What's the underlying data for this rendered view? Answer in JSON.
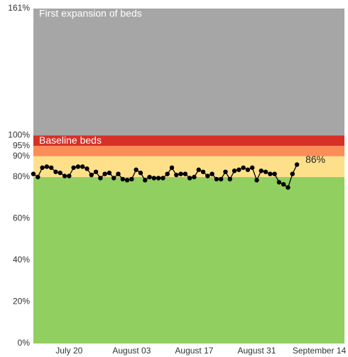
{
  "chart_data": {
    "type": "line",
    "categories": [
      null,
      null,
      null,
      null,
      null,
      null,
      null,
      null,
      "July 20",
      null,
      null,
      null,
      null,
      null,
      null,
      null,
      null,
      null,
      null,
      null,
      null,
      null,
      "August 03",
      null,
      null,
      null,
      null,
      null,
      null,
      null,
      null,
      null,
      null,
      null,
      null,
      null,
      "August 17",
      null,
      null,
      null,
      null,
      null,
      null,
      null,
      null,
      null,
      null,
      null,
      null,
      null,
      "August 31",
      null,
      null,
      null,
      null,
      null,
      null,
      null,
      null,
      null,
      null,
      null,
      null,
      null,
      "September 14",
      null,
      null,
      null,
      null,
      null
    ],
    "values": [
      81.5,
      80,
      84.5,
      85,
      84.5,
      82.5,
      82,
      80.5,
      80.5,
      84.5,
      85,
      85,
      84,
      81,
      82.5,
      79.5,
      81.5,
      82,
      79.5,
      81.5,
      79,
      78.5,
      79,
      83.5,
      82,
      78.5,
      80,
      79.5,
      79.5,
      79.5,
      81.5,
      84.5,
      81,
      81.5,
      81.5,
      79.5,
      80,
      83.5,
      82.5,
      80.5,
      81.5,
      79,
      79,
      82.5,
      79,
      83,
      83.5,
      84.5,
      83.5,
      84.5,
      78.5,
      83,
      82.5,
      81.5,
      81.5,
      77.5,
      76.5,
      75,
      81.5,
      86,
      null,
      null,
      null,
      null,
      null,
      null,
      null,
      null,
      null,
      null
    ],
    "value_labels": [
      null,
      null,
      null,
      null,
      null,
      null,
      null,
      null,
      null,
      null,
      null,
      null,
      null,
      null,
      null,
      null,
      null,
      null,
      null,
      null,
      null,
      null,
      null,
      null,
      null,
      null,
      null,
      null,
      null,
      null,
      null,
      null,
      null,
      null,
      null,
      null,
      null,
      null,
      null,
      null,
      null,
      null,
      null,
      null,
      null,
      null,
      null,
      null,
      null,
      null,
      null,
      null,
      null,
      null,
      null,
      null,
      null,
      null,
      null,
      "86%",
      null,
      null,
      null,
      null,
      null,
      null,
      null,
      null,
      null,
      null
    ],
    "color": "#000000",
    "ylim": [
      0,
      161
    ],
    "yticks": [
      {
        "value": 0,
        "label": "0%"
      },
      {
        "value": 20,
        "label": "20%"
      },
      {
        "value": 40,
        "label": "40%"
      },
      {
        "value": 60,
        "label": "60%"
      },
      {
        "value": 80,
        "label": "80%"
      },
      {
        "value": 90,
        "label": "90%"
      },
      {
        "value": 95,
        "label": "95%"
      },
      {
        "value": 100,
        "label": "100%"
      },
      {
        "value": 161,
        "label": "161%"
      }
    ],
    "bands": [
      {
        "from": 0,
        "to": 80,
        "color": "#91cf60"
      },
      {
        "from": 80,
        "to": 90,
        "color": "#fee08b"
      },
      {
        "from": 90,
        "to": 95,
        "color": "#fc8d59"
      },
      {
        "from": 95,
        "to": 100,
        "color": "#d73027"
      },
      {
        "from": 100,
        "to": 161,
        "color": "#a6a6a6"
      }
    ],
    "band_labels": [
      {
        "text": "Baseline beds",
        "y": 100
      },
      {
        "text": "First expansion of beds",
        "y": 161
      }
    ]
  }
}
